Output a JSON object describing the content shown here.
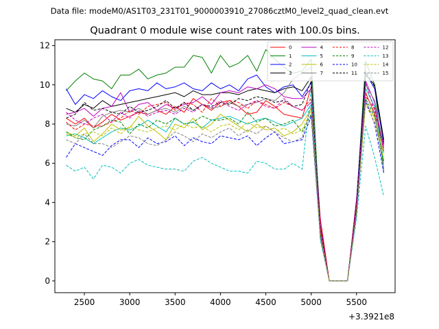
{
  "chart_data": {
    "type": "line",
    "suptitle": "Data file: modeM0/AS1T03_231T01_9000003910_27086cztM0_level2_quad_clean.evt",
    "title": "Quadrant 0 module wise count rates with 100.0s bins.",
    "xlabel": "",
    "ylabel": "",
    "x_offset_label": "+3.3921e8",
    "xlim": [
      2175,
      5925
    ],
    "ylim": [
      -0.6,
      12.3
    ],
    "xticks": [
      2500,
      3000,
      3500,
      4000,
      4500,
      5000,
      5500
    ],
    "yticks": [
      0,
      2,
      4,
      6,
      8,
      10,
      12
    ],
    "x": [
      2300,
      2400,
      2500,
      2600,
      2700,
      2800,
      2900,
      3000,
      3100,
      3200,
      3300,
      3400,
      3500,
      3600,
      3700,
      3800,
      3900,
      4000,
      4100,
      4200,
      4300,
      4400,
      4500,
      4600,
      4700,
      4800,
      4900,
      5000,
      5100,
      5200,
      5300,
      5400,
      5500,
      5600,
      5700,
      5800
    ],
    "legend_location": "upper right",
    "series": [
      {
        "name": "0",
        "color": "#ff0000",
        "linestyle": "solid",
        "values": [
          8.3,
          8.0,
          8.3,
          7.8,
          8.1,
          8.5,
          8.2,
          8.4,
          8.6,
          8.5,
          8.7,
          8.5,
          8.9,
          8.6,
          9.3,
          9.0,
          8.7,
          9.1,
          9.2,
          8.9,
          8.5,
          8.6,
          9.2,
          8.9,
          8.5,
          8.4,
          8.3,
          9.9,
          3.2,
          0.0,
          0.0,
          0.0,
          4.2,
          9.6,
          8.5,
          7.0
        ]
      },
      {
        "name": "1",
        "color": "#008000",
        "linestyle": "solid",
        "values": [
          9.7,
          10.2,
          10.6,
          10.3,
          10.2,
          9.8,
          10.5,
          10.5,
          10.8,
          10.3,
          10.5,
          10.6,
          10.9,
          10.9,
          11.5,
          11.4,
          10.6,
          11.5,
          10.9,
          11.1,
          11.5,
          10.7,
          11.8,
          11.3,
          10.9,
          10.6,
          10.7,
          11.3,
          2.6,
          0.0,
          0.0,
          0.0,
          4.0,
          11.2,
          10.0,
          5.6
        ]
      },
      {
        "name": "2",
        "color": "#0000ff",
        "linestyle": "solid",
        "values": [
          9.8,
          9.0,
          9.5,
          9.3,
          9.7,
          9.4,
          9.2,
          9.7,
          9.8,
          9.7,
          10.1,
          9.8,
          9.9,
          10.1,
          9.8,
          9.7,
          10.1,
          9.8,
          10.0,
          9.7,
          10.3,
          10.5,
          9.9,
          9.6,
          9.9,
          10.0,
          9.4,
          10.1,
          2.9,
          0.0,
          0.0,
          0.0,
          4.1,
          10.6,
          9.8,
          7.0
        ]
      },
      {
        "name": "3",
        "color": "#000000",
        "linestyle": "solid",
        "values": [
          8.8,
          8.6,
          9.0,
          8.8,
          9.2,
          8.9,
          9.0,
          9.1,
          9.2,
          9.3,
          9.4,
          9.5,
          9.6,
          9.4,
          9.7,
          9.5,
          9.5,
          9.6,
          9.6,
          9.5,
          9.7,
          9.8,
          9.7,
          9.6,
          9.8,
          9.9,
          9.7,
          10.4,
          2.4,
          0.0,
          0.0,
          0.0,
          3.9,
          10.5,
          10.0,
          7.2
        ]
      },
      {
        "name": "4",
        "color": "#bf00bf",
        "linestyle": "solid",
        "values": [
          8.5,
          8.6,
          8.8,
          8.4,
          8.8,
          8.9,
          9.6,
          8.6,
          9.0,
          9.1,
          8.7,
          9.0,
          8.8,
          9.0,
          9.1,
          9.4,
          9.0,
          9.6,
          9.7,
          9.6,
          9.9,
          9.8,
          10.0,
          9.8,
          9.4,
          9.3,
          9.3,
          9.8,
          2.7,
          0.0,
          0.0,
          0.0,
          3.8,
          10.2,
          9.1,
          6.6
        ]
      },
      {
        "name": "5",
        "color": "#00bfbf",
        "linestyle": "solid",
        "values": [
          7.4,
          7.5,
          7.3,
          7.0,
          7.3,
          7.6,
          7.8,
          7.7,
          7.9,
          8.2,
          7.9,
          7.6,
          8.3,
          8.0,
          8.1,
          7.8,
          8.2,
          8.3,
          8.4,
          8.2,
          8.0,
          8.2,
          8.3,
          8.1,
          7.9,
          8.1,
          8.3,
          9.0,
          2.3,
          0.0,
          0.0,
          0.0,
          3.6,
          9.8,
          8.9,
          6.1
        ]
      },
      {
        "name": "6",
        "color": "#bfbf00",
        "linestyle": "solid",
        "values": [
          7.6,
          7.4,
          7.8,
          7.1,
          7.5,
          8.0,
          7.7,
          7.8,
          8.4,
          7.9,
          7.6,
          7.2,
          8.0,
          7.8,
          8.3,
          7.7,
          8.0,
          8.5,
          8.2,
          7.9,
          7.6,
          8.0,
          7.7,
          7.8,
          7.4,
          7.6,
          8.0,
          8.8,
          2.5,
          0.0,
          0.0,
          0.0,
          3.7,
          9.1,
          8.3,
          6.5
        ]
      },
      {
        "name": "7",
        "color": "#808080",
        "linestyle": "solid",
        "values": [
          8.0,
          7.9,
          8.2,
          7.8,
          8.4,
          8.6,
          8.7,
          8.6,
          8.8,
          8.5,
          8.7,
          8.8,
          8.6,
          8.9,
          8.7,
          9.0,
          8.8,
          8.9,
          9.1,
          8.9,
          9.0,
          9.1,
          9.3,
          9.2,
          9.6,
          10.3,
          10.6,
          10.9,
          2.2,
          0.0,
          0.0,
          0.0,
          3.5,
          10.0,
          9.2,
          6.8
        ]
      },
      {
        "name": "8",
        "color": "#ff0000",
        "linestyle": "dashed",
        "values": [
          8.1,
          7.7,
          8.0,
          7.9,
          7.9,
          8.1,
          8.3,
          8.7,
          8.5,
          8.9,
          9.0,
          9.1,
          8.7,
          9.1,
          9.0,
          8.6,
          9.3,
          8.9,
          9.2,
          9.1,
          8.8,
          9.2,
          9.0,
          8.8,
          9.1,
          8.9,
          8.7,
          9.3,
          2.8,
          0.0,
          0.0,
          0.0,
          4.0,
          9.4,
          8.8,
          6.8
        ]
      },
      {
        "name": "9",
        "color": "#008000",
        "linestyle": "dashed",
        "values": [
          7.6,
          7.3,
          7.2,
          7.7,
          7.9,
          8.2,
          8.1,
          7.5,
          8.0,
          7.8,
          8.2,
          8.0,
          8.3,
          8.0,
          8.1,
          8.4,
          8.2,
          8.2,
          8.3,
          8.0,
          8.6,
          8.1,
          8.3,
          7.9,
          8.0,
          8.2,
          7.6,
          8.5,
          2.4,
          0.0,
          0.0,
          0.0,
          3.6,
          9.3,
          8.4,
          6.0
        ]
      },
      {
        "name": "10",
        "color": "#0000ff",
        "linestyle": "dashed",
        "values": [
          6.3,
          7.0,
          6.8,
          6.6,
          6.4,
          6.9,
          7.2,
          7.2,
          6.8,
          7.3,
          7.0,
          7.1,
          7.4,
          6.9,
          7.3,
          7.1,
          7.0,
          7.4,
          7.3,
          7.2,
          7.4,
          6.9,
          7.3,
          7.6,
          7.0,
          7.1,
          7.2,
          8.4,
          2.3,
          0.0,
          0.0,
          0.0,
          3.3,
          9.2,
          8.0,
          5.5
        ]
      },
      {
        "name": "11",
        "color": "#000000",
        "linestyle": "dashed",
        "values": [
          8.3,
          8.5,
          9.1,
          8.7,
          8.8,
          8.6,
          8.5,
          8.9,
          8.6,
          8.7,
          8.9,
          9.2,
          8.8,
          9.1,
          8.7,
          9.0,
          8.9,
          9.1,
          9.0,
          9.3,
          9.2,
          9.4,
          9.3,
          9.1,
          9.2,
          8.9,
          9.0,
          10.2,
          2.5,
          0.0,
          0.0,
          0.0,
          3.7,
          10.7,
          9.9,
          7.1
        ]
      },
      {
        "name": "12",
        "color": "#bf00bf",
        "linestyle": "dashed",
        "values": [
          8.6,
          8.2,
          8.0,
          8.3,
          8.5,
          8.1,
          8.6,
          8.3,
          8.7,
          8.4,
          8.6,
          8.7,
          8.5,
          8.8,
          8.6,
          9.0,
          8.8,
          9.2,
          8.9,
          8.7,
          9.0,
          9.2,
          8.9,
          8.8,
          9.3,
          8.9,
          8.7,
          9.1,
          2.6,
          0.0,
          0.0,
          0.0,
          3.9,
          10.1,
          8.7,
          6.9
        ]
      },
      {
        "name": "13",
        "color": "#00bfbf",
        "linestyle": "dashed",
        "values": [
          5.9,
          5.6,
          5.8,
          5.2,
          5.9,
          5.8,
          5.5,
          6.0,
          6.2,
          5.9,
          5.8,
          5.7,
          5.7,
          5.6,
          6.1,
          6.3,
          6.0,
          5.8,
          5.6,
          5.6,
          5.5,
          6.1,
          6.0,
          5.7,
          5.7,
          6.0,
          5.7,
          9.8,
          2.1,
          0.0,
          0.0,
          0.0,
          3.2,
          7.9,
          6.3,
          4.3
        ]
      },
      {
        "name": "14",
        "color": "#bfbf00",
        "linestyle": "dashed",
        "values": [
          7.5,
          7.3,
          7.5,
          7.6,
          7.4,
          7.8,
          7.5,
          7.9,
          7.7,
          7.6,
          7.8,
          7.9,
          7.7,
          8.0,
          7.8,
          7.9,
          7.6,
          7.9,
          8.0,
          7.7,
          8.1,
          7.8,
          7.9,
          7.6,
          7.8,
          7.5,
          7.7,
          8.7,
          2.4,
          0.0,
          0.0,
          0.0,
          3.5,
          9.0,
          8.1,
          6.2
        ]
      },
      {
        "name": "15",
        "color": "#808080",
        "linestyle": "dashed",
        "values": [
          7.2,
          7.0,
          7.5,
          7.0,
          7.0,
          6.8,
          7.1,
          7.4,
          7.3,
          7.0,
          6.9,
          7.2,
          7.6,
          7.4,
          7.1,
          7.5,
          7.3,
          7.6,
          7.8,
          7.4,
          7.7,
          7.5,
          7.9,
          7.6,
          7.3,
          7.1,
          7.3,
          8.9,
          2.2,
          0.0,
          0.0,
          0.0,
          3.4,
          9.5,
          8.6,
          5.6
        ]
      }
    ]
  }
}
